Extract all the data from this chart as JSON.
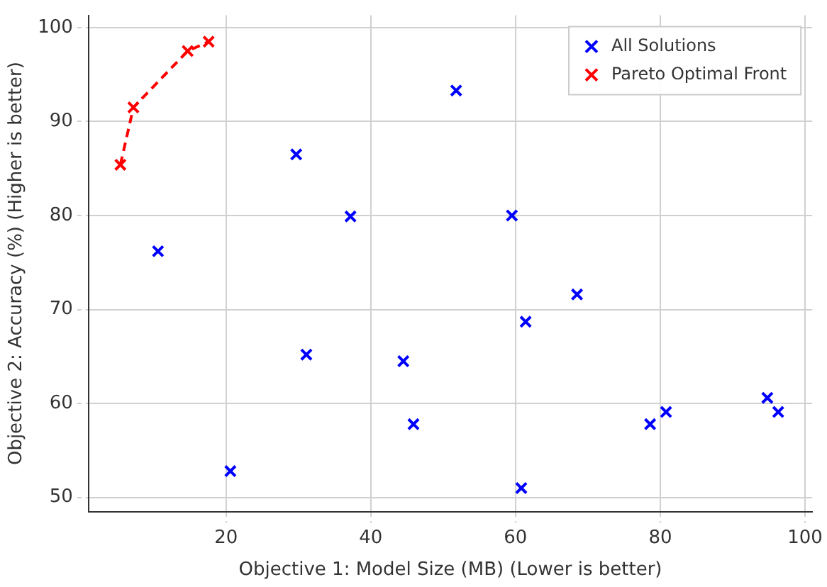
{
  "chart_data": {
    "type": "scatter",
    "xlabel": "Objective 1: Model Size (MB) (Lower is better)",
    "ylabel": "Objective 2: Accuracy (%) (Higher is better)",
    "xlim": [
      1,
      101
    ],
    "ylim": [
      48.5,
      101.3
    ],
    "xticks": [
      20,
      40,
      60,
      80,
      100
    ],
    "yticks": [
      50,
      60,
      70,
      80,
      90,
      100
    ],
    "grid": true,
    "legend": "top right",
    "marker": "cross",
    "series": [
      {
        "name": "All Solutions",
        "type": "scatter",
        "color": "#0000ff",
        "x": [
          10.6,
          29.7,
          37.2,
          31.1,
          20.6,
          44.5,
          45.9,
          51.8,
          59.5,
          61.4,
          60.8,
          68.5,
          78.6,
          80.8,
          94.8,
          96.3
        ],
        "values": [
          76.2,
          86.5,
          79.9,
          65.2,
          52.8,
          64.5,
          57.8,
          93.3,
          80.0,
          68.7,
          51.0,
          71.6,
          57.8,
          59.1,
          60.6,
          59.1
        ]
      },
      {
        "name": "Pareto Optimal Front",
        "type": "line",
        "line_style": "dashed",
        "color": "#ff0000",
        "x": [
          5.4,
          7.2,
          14.7,
          17.6
        ],
        "values": [
          85.4,
          91.5,
          97.5,
          98.5
        ]
      }
    ]
  }
}
